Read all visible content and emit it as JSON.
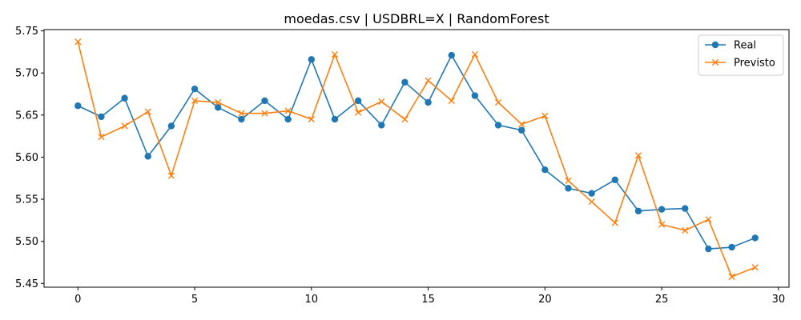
{
  "chart_data": {
    "type": "line",
    "title": "moedas.csv | USDBRL=X | RandomForest",
    "xlabel": "",
    "ylabel": "",
    "xlim": [
      -1.45,
      30.45
    ],
    "ylim": [
      5.4455,
      5.7515
    ],
    "xticks": [
      0,
      5,
      10,
      15,
      20,
      25,
      30
    ],
    "yticks": [
      5.45,
      5.5,
      5.55,
      5.6,
      5.65,
      5.7,
      5.75
    ],
    "ytick_labels": [
      "5.45",
      "5.50",
      "5.55",
      "5.60",
      "5.65",
      "5.70",
      "5.75"
    ],
    "grid": false,
    "legend_position": "top-right",
    "x": [
      0,
      1,
      2,
      3,
      4,
      5,
      6,
      7,
      8,
      9,
      10,
      11,
      12,
      13,
      14,
      15,
      16,
      17,
      18,
      19,
      20,
      21,
      22,
      23,
      24,
      25,
      26,
      27,
      28,
      29
    ],
    "series": [
      {
        "name": "Real",
        "color": "#1f77b4",
        "marker": "circle",
        "values": [
          5.661,
          5.648,
          5.67,
          5.601,
          5.637,
          5.681,
          5.659,
          5.645,
          5.667,
          5.645,
          5.716,
          5.645,
          5.667,
          5.638,
          5.689,
          5.665,
          5.721,
          5.673,
          5.638,
          5.632,
          5.585,
          5.563,
          5.557,
          5.573,
          5.536,
          5.538,
          5.539,
          5.491,
          5.493,
          5.504
        ]
      },
      {
        "name": "Previsto",
        "color": "#ff7f0e",
        "marker": "x",
        "values": [
          5.737,
          5.624,
          5.637,
          5.654,
          5.578,
          5.667,
          5.665,
          5.652,
          5.652,
          5.655,
          5.645,
          5.722,
          5.653,
          5.666,
          5.645,
          5.691,
          5.667,
          5.722,
          5.665,
          5.639,
          5.649,
          5.572,
          5.547,
          5.522,
          5.602,
          5.52,
          5.513,
          5.526,
          5.458,
          5.469
        ]
      }
    ]
  }
}
